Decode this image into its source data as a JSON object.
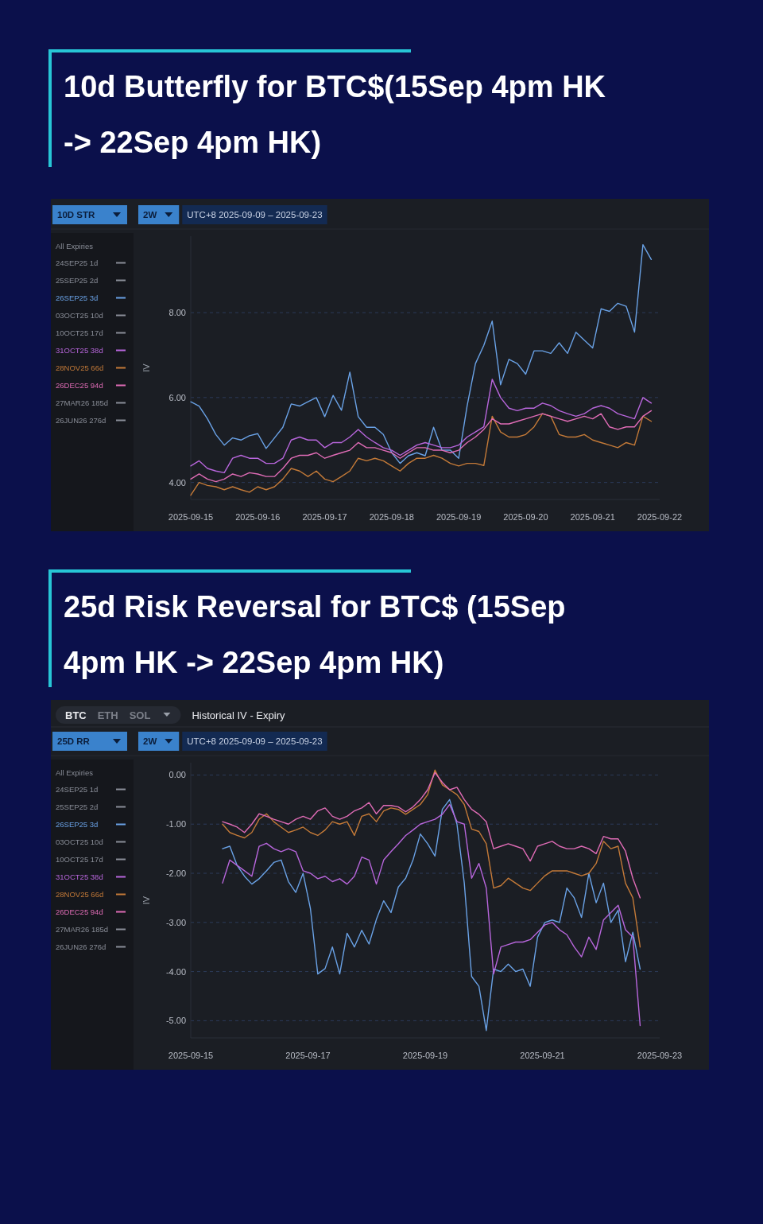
{
  "chart_data": [
    {
      "type": "line",
      "title": "10d Butterfly for BTC$(15Sep 4pm HK -> 22Sep 4pm HK)",
      "ylabel": "IV",
      "legend_title": "All Expiries",
      "legend": "left",
      "grid": "y",
      "annotations": [
        "10D STR",
        "2W",
        "UTC+8 2025-09-09 – 2025-09-23"
      ],
      "xlim": [
        "2025-09-15",
        "2025-09-22"
      ],
      "xticks": [
        "2025-09-15",
        "2025-09-16",
        "2025-09-17",
        "2025-09-18",
        "2025-09-19",
        "2025-09-20",
        "2025-09-21",
        "2025-09-22"
      ],
      "ylim": [
        3.6,
        9.8
      ],
      "yticks": [
        {
          "value": 4,
          "label": "4.00"
        },
        {
          "value": 6,
          "label": "6.00"
        },
        {
          "value": 8,
          "label": "8.00"
        }
      ],
      "x": [
        "2025-09-15T00:00",
        "2025-09-15T03:00",
        "2025-09-15T06:00",
        "2025-09-15T09:00",
        "2025-09-15T12:00",
        "2025-09-15T15:00",
        "2025-09-15T18:00",
        "2025-09-15T21:00",
        "2025-09-16T00:00",
        "2025-09-16T03:00",
        "2025-09-16T06:00",
        "2025-09-16T09:00",
        "2025-09-16T12:00",
        "2025-09-16T15:00",
        "2025-09-16T18:00",
        "2025-09-16T21:00",
        "2025-09-17T00:00",
        "2025-09-17T03:00",
        "2025-09-17T06:00",
        "2025-09-17T09:00",
        "2025-09-17T12:00",
        "2025-09-17T15:00",
        "2025-09-17T18:00",
        "2025-09-17T21:00",
        "2025-09-18T00:00",
        "2025-09-18T03:00",
        "2025-09-18T06:00",
        "2025-09-18T09:00",
        "2025-09-18T12:00",
        "2025-09-18T15:00",
        "2025-09-18T18:00",
        "2025-09-18T21:00",
        "2025-09-19T00:00",
        "2025-09-19T03:00",
        "2025-09-19T06:00",
        "2025-09-19T09:00",
        "2025-09-19T12:00",
        "2025-09-19T15:00",
        "2025-09-19T18:00",
        "2025-09-19T21:00",
        "2025-09-20T00:00",
        "2025-09-20T03:00",
        "2025-09-20T06:00",
        "2025-09-20T09:00",
        "2025-09-20T12:00",
        "2025-09-20T15:00",
        "2025-09-20T18:00",
        "2025-09-20T21:00",
        "2025-09-21T00:00",
        "2025-09-21T03:00",
        "2025-09-21T06:00",
        "2025-09-21T09:00",
        "2025-09-21T12:00",
        "2025-09-21T15:00",
        "2025-09-21T18:00",
        "2025-09-21T21:00"
      ],
      "series": [
        {
          "name": "24SEP25 1d",
          "color": "#8a8e98",
          "values": [
            null,
            null,
            null,
            null,
            null,
            null,
            null,
            null,
            null,
            null,
            null,
            null,
            null,
            null,
            null,
            null,
            null,
            null,
            null,
            null,
            null,
            null,
            null,
            null,
            null,
            null,
            null,
            null,
            null,
            null,
            null,
            null,
            null,
            null,
            null,
            null,
            null,
            null,
            null,
            null,
            null,
            null,
            null,
            null,
            null,
            null,
            null,
            null,
            null,
            null,
            null,
            null,
            null,
            null,
            null,
            null
          ]
        },
        {
          "name": "25SEP25 2d",
          "color": "#8a8e98",
          "values": [
            null,
            null,
            null,
            null,
            null,
            null,
            null,
            null,
            null,
            null,
            null,
            null,
            null,
            null,
            null,
            null,
            null,
            null,
            null,
            null,
            null,
            null,
            null,
            null,
            null,
            null,
            null,
            null,
            null,
            null,
            null,
            null,
            null,
            null,
            null,
            null,
            null,
            null,
            null,
            null,
            null,
            null,
            null,
            null,
            null,
            null,
            null,
            null,
            null,
            null,
            null,
            null,
            null,
            null,
            null,
            null
          ]
        },
        {
          "name": "26SEP25 3d",
          "color": "#6aa2e6",
          "values": [
            5.9,
            5.8,
            5.5,
            5.13,
            4.88,
            5.05,
            5.0,
            5.1,
            5.15,
            4.8,
            5.05,
            5.3,
            5.85,
            5.8,
            5.9,
            6.0,
            5.55,
            6.05,
            5.7,
            6.6,
            5.55,
            5.3,
            5.3,
            5.13,
            4.7,
            4.45,
            4.63,
            4.7,
            4.63,
            5.3,
            4.76,
            4.76,
            4.57,
            5.8,
            6.8,
            7.23,
            7.8,
            6.3,
            6.9,
            6.8,
            6.55,
            7.1,
            7.1,
            7.04,
            7.29,
            7.04,
            7.54,
            7.35,
            7.17,
            8.09,
            8.03,
            8.22,
            8.15,
            7.54,
            9.6,
            9.25
          ]
        },
        {
          "name": "03OCT25 10d",
          "color": "#8a8e98",
          "values": [
            null,
            null,
            null,
            null,
            null,
            null,
            null,
            null,
            null,
            null,
            null,
            null,
            null,
            null,
            null,
            null,
            null,
            null,
            null,
            null,
            null,
            null,
            null,
            null,
            null,
            null,
            null,
            null,
            null,
            null,
            null,
            null,
            null,
            null,
            null,
            null,
            null,
            null,
            null,
            null,
            null,
            null,
            null,
            null,
            null,
            null,
            null,
            null,
            null,
            null,
            null,
            null,
            null,
            null,
            null,
            null
          ]
        },
        {
          "name": "10OCT25 17d",
          "color": "#8a8e98",
          "values": [
            null,
            null,
            null,
            null,
            null,
            null,
            null,
            null,
            null,
            null,
            null,
            null,
            null,
            null,
            null,
            null,
            null,
            null,
            null,
            null,
            null,
            null,
            null,
            null,
            null,
            null,
            null,
            null,
            null,
            null,
            null,
            null,
            null,
            null,
            null,
            null,
            null,
            null,
            null,
            null,
            null,
            null,
            null,
            null,
            null,
            null,
            null,
            null,
            null,
            null,
            null,
            null,
            null,
            null,
            null,
            null
          ]
        },
        {
          "name": "31OCT25 38d",
          "color": "#b866dc",
          "values": [
            4.39,
            4.51,
            4.33,
            4.27,
            4.23,
            4.57,
            4.64,
            4.57,
            4.57,
            4.45,
            4.45,
            4.57,
            5.0,
            5.07,
            5.0,
            5.0,
            4.82,
            4.94,
            4.94,
            5.07,
            5.25,
            5.07,
            4.94,
            4.82,
            4.76,
            4.64,
            4.76,
            4.88,
            4.94,
            4.88,
            4.82,
            4.82,
            4.88,
            5.07,
            5.19,
            5.31,
            6.43,
            6.0,
            5.75,
            5.69,
            5.75,
            5.75,
            5.87,
            5.81,
            5.69,
            5.62,
            5.56,
            5.62,
            5.75,
            5.81,
            5.75,
            5.62,
            5.56,
            5.5,
            6.0,
            5.87
          ]
        },
        {
          "name": "28NOV25 66d",
          "color": "#c47a38",
          "values": [
            3.7,
            4.0,
            3.93,
            3.9,
            3.83,
            3.9,
            3.83,
            3.77,
            3.9,
            3.83,
            3.9,
            4.08,
            4.33,
            4.27,
            4.14,
            4.27,
            4.08,
            4.02,
            4.14,
            4.27,
            4.57,
            4.51,
            4.57,
            4.51,
            4.39,
            4.27,
            4.45,
            4.57,
            4.57,
            4.64,
            4.57,
            4.45,
            4.39,
            4.45,
            4.45,
            4.4,
            5.56,
            5.19,
            5.07,
            5.07,
            5.13,
            5.31,
            5.62,
            5.56,
            5.13,
            5.07,
            5.07,
            5.13,
            5.0,
            4.94,
            4.88,
            4.82,
            4.94,
            4.88,
            5.56,
            5.44
          ]
        },
        {
          "name": "26DEC25 94d",
          "color": "#e06cb6",
          "values": [
            4.08,
            4.2,
            4.08,
            4.02,
            4.08,
            4.2,
            4.14,
            4.23,
            4.2,
            4.14,
            4.14,
            4.33,
            4.57,
            4.64,
            4.64,
            4.7,
            4.57,
            4.64,
            4.7,
            4.76,
            4.94,
            4.82,
            4.82,
            4.76,
            4.7,
            4.57,
            4.7,
            4.82,
            4.82,
            4.76,
            4.76,
            4.7,
            4.76,
            4.94,
            5.07,
            5.25,
            5.5,
            5.38,
            5.38,
            5.44,
            5.5,
            5.56,
            5.62,
            5.56,
            5.5,
            5.44,
            5.5,
            5.56,
            5.5,
            5.62,
            5.31,
            5.25,
            5.31,
            5.31,
            5.56,
            5.69
          ]
        },
        {
          "name": "27MAR26 185d",
          "color": "#8a8e98",
          "values": [
            null,
            null,
            null,
            null,
            null,
            null,
            null,
            null,
            null,
            null,
            null,
            null,
            null,
            null,
            null,
            null,
            null,
            null,
            null,
            null,
            null,
            null,
            null,
            null,
            null,
            null,
            null,
            null,
            null,
            null,
            null,
            null,
            null,
            null,
            null,
            null,
            null,
            null,
            null,
            null,
            null,
            null,
            null,
            null,
            null,
            null,
            null,
            null,
            null,
            null,
            null,
            null,
            null,
            null,
            null,
            null
          ]
        },
        {
          "name": "26JUN26 276d",
          "color": "#8a8e98",
          "values": [
            null,
            null,
            null,
            null,
            null,
            null,
            null,
            null,
            null,
            null,
            null,
            null,
            null,
            null,
            null,
            null,
            null,
            null,
            null,
            null,
            null,
            null,
            null,
            null,
            null,
            null,
            null,
            null,
            null,
            null,
            null,
            null,
            null,
            null,
            null,
            null,
            null,
            null,
            null,
            null,
            null,
            null,
            null,
            null,
            null,
            null,
            null,
            null,
            null,
            null,
            null,
            null,
            null,
            null,
            null,
            null
          ]
        }
      ]
    },
    {
      "type": "line",
      "title": "25d Risk Reversal for BTC$ (15Sep 4pm HK -> 22Sep 4pm HK)",
      "ylabel": "IV",
      "legend_title": "All Expiries",
      "legend": "left",
      "grid": "y",
      "annotations": [
        "BTC",
        "ETH",
        "SOL",
        "Historical IV - Expiry",
        "25D RR",
        "2W",
        "UTC+8 2025-09-09 – 2025-09-23"
      ],
      "xlim": [
        "2025-09-15",
        "2025-09-23"
      ],
      "xticks": [
        "2025-09-15",
        "2025-09-17",
        "2025-09-19",
        "2025-09-21",
        "2025-09-23"
      ],
      "ylim": [
        -5.35,
        0.25
      ],
      "yticks": [
        {
          "value": 0,
          "label": "0.00"
        },
        {
          "value": -1,
          "label": "-1.00"
        },
        {
          "value": -2,
          "label": "-2.00"
        },
        {
          "value": -3,
          "label": "-3.00"
        },
        {
          "value": -4,
          "label": "-4.00"
        },
        {
          "value": -5,
          "label": "-5.00"
        }
      ],
      "x": [
        "2025-09-15T13:00",
        "2025-09-15T16:00",
        "2025-09-15T19:00",
        "2025-09-15T22:00",
        "2025-09-16T01:00",
        "2025-09-16T04:00",
        "2025-09-16T07:00",
        "2025-09-16T10:00",
        "2025-09-16T13:00",
        "2025-09-16T16:00",
        "2025-09-16T19:00",
        "2025-09-16T22:00",
        "2025-09-17T01:00",
        "2025-09-17T04:00",
        "2025-09-17T07:00",
        "2025-09-17T10:00",
        "2025-09-17T13:00",
        "2025-09-17T16:00",
        "2025-09-17T19:00",
        "2025-09-17T22:00",
        "2025-09-18T01:00",
        "2025-09-18T04:00",
        "2025-09-18T07:00",
        "2025-09-18T10:00",
        "2025-09-18T13:00",
        "2025-09-18T16:00",
        "2025-09-18T19:00",
        "2025-09-18T22:00",
        "2025-09-19T01:00",
        "2025-09-19T04:00",
        "2025-09-19T07:00",
        "2025-09-19T10:00",
        "2025-09-19T13:00",
        "2025-09-19T16:00",
        "2025-09-19T19:00",
        "2025-09-19T22:00",
        "2025-09-20T01:00",
        "2025-09-20T04:00",
        "2025-09-20T07:00",
        "2025-09-20T10:00",
        "2025-09-20T13:00",
        "2025-09-20T16:00",
        "2025-09-20T19:00",
        "2025-09-20T22:00",
        "2025-09-21T01:00",
        "2025-09-21T04:00",
        "2025-09-21T07:00",
        "2025-09-21T10:00",
        "2025-09-21T13:00",
        "2025-09-21T16:00",
        "2025-09-21T19:00",
        "2025-09-21T22:00",
        "2025-09-22T01:00",
        "2025-09-22T04:00",
        "2025-09-22T07:00",
        "2025-09-22T10:00",
        "2025-09-22T13:00",
        "2025-09-22T16:00"
      ],
      "series": [
        {
          "name": "24SEP25 1d",
          "color": "#8a8e98",
          "values": [
            null,
            null,
            null,
            null,
            null,
            null,
            null,
            null,
            null,
            null,
            null,
            null,
            null,
            null,
            null,
            null,
            null,
            null,
            null,
            null,
            null,
            null,
            null,
            null,
            null,
            null,
            null,
            null,
            null,
            null,
            null,
            null,
            null,
            null,
            null,
            null,
            null,
            null,
            null,
            null,
            null,
            null,
            null,
            null,
            null,
            null,
            null,
            null,
            null,
            null,
            null,
            null,
            null,
            null,
            null,
            null,
            null,
            null
          ]
        },
        {
          "name": "25SEP25 2d",
          "color": "#8a8e98",
          "values": [
            null,
            null,
            null,
            null,
            null,
            null,
            null,
            null,
            null,
            null,
            null,
            null,
            null,
            null,
            null,
            null,
            null,
            null,
            null,
            null,
            null,
            null,
            null,
            null,
            null,
            null,
            null,
            null,
            null,
            null,
            null,
            null,
            null,
            null,
            null,
            null,
            null,
            null,
            null,
            null,
            null,
            null,
            null,
            null,
            null,
            null,
            null,
            null,
            null,
            null,
            null,
            null,
            null,
            null,
            null,
            null,
            null,
            null
          ]
        },
        {
          "name": "26SEP25 3d",
          "color": "#6aa2e6",
          "values": [
            -1.5,
            -1.45,
            -1.84,
            -2.06,
            -2.22,
            -2.11,
            -1.95,
            -1.78,
            -1.73,
            -2.17,
            -2.39,
            -2.0,
            -2.72,
            -4.05,
            -3.94,
            -3.5,
            -4.05,
            -3.22,
            -3.5,
            -3.16,
            -3.44,
            -2.94,
            -2.56,
            -2.8,
            -2.28,
            -2.1,
            -1.73,
            -1.2,
            -1.4,
            -1.65,
            -0.7,
            -0.5,
            -1.0,
            -2.2,
            -4.1,
            -4.3,
            -5.2,
            -3.95,
            -4.0,
            -3.85,
            -4.0,
            -3.95,
            -4.3,
            -3.3,
            -3.0,
            -2.95,
            -3.0,
            -2.3,
            -2.5,
            -2.9,
            -2.0,
            -2.6,
            -2.2,
            -3.0,
            -2.75,
            -3.8,
            -3.2,
            -3.95
          ]
        },
        {
          "name": "03OCT25 10d",
          "color": "#8a8e98",
          "values": [
            null,
            null,
            null,
            null,
            null,
            null,
            null,
            null,
            null,
            null,
            null,
            null,
            null,
            null,
            null,
            null,
            null,
            null,
            null,
            null,
            null,
            null,
            null,
            null,
            null,
            null,
            null,
            null,
            null,
            null,
            null,
            null,
            null,
            null,
            null,
            null,
            null,
            null,
            null,
            null,
            null,
            null,
            null,
            null,
            null,
            null,
            null,
            null,
            null,
            null,
            null,
            null,
            null,
            null,
            null,
            null,
            null,
            null
          ]
        },
        {
          "name": "10OCT25 17d",
          "color": "#8a8e98",
          "values": [
            null,
            null,
            null,
            null,
            null,
            null,
            null,
            null,
            null,
            null,
            null,
            null,
            null,
            null,
            null,
            null,
            null,
            null,
            null,
            null,
            null,
            null,
            null,
            null,
            null,
            null,
            null,
            null,
            null,
            null,
            null,
            null,
            null,
            null,
            null,
            null,
            null,
            null,
            null,
            null,
            null,
            null,
            null,
            null,
            null,
            null,
            null,
            null,
            null,
            null,
            null,
            null,
            null,
            null,
            null,
            null,
            null,
            null
          ]
        },
        {
          "name": "31OCT25 38d",
          "color": "#b866dc",
          "values": [
            -2.2,
            -1.73,
            -1.84,
            -1.95,
            -2.06,
            -1.45,
            -1.39,
            -1.5,
            -1.56,
            -1.5,
            -1.56,
            -1.95,
            -2.0,
            -2.11,
            -2.06,
            -2.17,
            -2.11,
            -2.22,
            -2.06,
            -1.67,
            -1.73,
            -2.22,
            -1.73,
            -1.56,
            -1.4,
            -1.23,
            -1.12,
            -1.0,
            -0.95,
            -0.9,
            -0.8,
            -0.6,
            -0.95,
            -1.0,
            -2.1,
            -1.8,
            -2.3,
            -4.05,
            -3.5,
            -3.45,
            -3.4,
            -3.4,
            -3.35,
            -3.2,
            -3.05,
            -3.0,
            -3.15,
            -3.25,
            -3.5,
            -3.7,
            -3.3,
            -3.55,
            -2.95,
            -2.8,
            -2.65,
            -3.15,
            -3.3,
            -5.1
          ]
        },
        {
          "name": "28NOV25 66d",
          "color": "#c47a38",
          "values": [
            -1.0,
            -1.17,
            -1.23,
            -1.28,
            -1.17,
            -0.9,
            -0.79,
            -0.95,
            -1.06,
            -1.17,
            -1.12,
            -1.06,
            -1.17,
            -1.23,
            -1.12,
            -0.95,
            -1.0,
            -0.95,
            -1.23,
            -0.84,
            -0.79,
            -0.95,
            -0.73,
            -0.67,
            -0.7,
            -0.8,
            -0.7,
            -0.6,
            -0.4,
            0.1,
            -0.2,
            -0.3,
            -0.4,
            -0.6,
            -1.1,
            -1.15,
            -1.4,
            -2.3,
            -2.25,
            -2.1,
            -2.2,
            -2.3,
            -2.35,
            -2.2,
            -2.05,
            -1.95,
            -1.95,
            -1.95,
            -2.0,
            -2.05,
            -2.0,
            -1.8,
            -1.35,
            -1.5,
            -1.45,
            -2.2,
            -2.5,
            -3.5
          ]
        },
        {
          "name": "26DEC25 94d",
          "color": "#e06cb6",
          "values": [
            -0.95,
            -1.0,
            -1.06,
            -1.17,
            -1.0,
            -0.79,
            -0.84,
            -0.9,
            -0.95,
            -1.0,
            -0.9,
            -0.84,
            -0.9,
            -0.73,
            -0.67,
            -0.84,
            -0.9,
            -0.84,
            -0.73,
            -0.67,
            -0.56,
            -0.79,
            -0.62,
            -0.62,
            -0.65,
            -0.75,
            -0.65,
            -0.5,
            -0.3,
            0.05,
            -0.15,
            -0.3,
            -0.25,
            -0.5,
            -0.7,
            -0.8,
            -0.95,
            -1.5,
            -1.45,
            -1.4,
            -1.45,
            -1.5,
            -1.75,
            -1.45,
            -1.4,
            -1.35,
            -1.45,
            -1.5,
            -1.5,
            -1.45,
            -1.5,
            -1.6,
            -1.25,
            -1.3,
            -1.3,
            -1.55,
            -2.1,
            -2.5
          ]
        },
        {
          "name": "27MAR26 185d",
          "color": "#8a8e98",
          "values": [
            null,
            null,
            null,
            null,
            null,
            null,
            null,
            null,
            null,
            null,
            null,
            null,
            null,
            null,
            null,
            null,
            null,
            null,
            null,
            null,
            null,
            null,
            null,
            null,
            null,
            null,
            null,
            null,
            null,
            null,
            null,
            null,
            null,
            null,
            null,
            null,
            null,
            null,
            null,
            null,
            null,
            null,
            null,
            null,
            null,
            null,
            null,
            null,
            null,
            null,
            null,
            null,
            null,
            null,
            null,
            null,
            null,
            null
          ]
        },
        {
          "name": "26JUN26 276d",
          "color": "#8a8e98",
          "values": [
            null,
            null,
            null,
            null,
            null,
            null,
            null,
            null,
            null,
            null,
            null,
            null,
            null,
            null,
            null,
            null,
            null,
            null,
            null,
            null,
            null,
            null,
            null,
            null,
            null,
            null,
            null,
            null,
            null,
            null,
            null,
            null,
            null,
            null,
            null,
            null,
            null,
            null,
            null,
            null,
            null,
            null,
            null,
            null,
            null,
            null,
            null,
            null,
            null,
            null,
            null,
            null,
            null,
            null,
            null,
            null,
            null,
            null
          ]
        }
      ]
    }
  ]
}
